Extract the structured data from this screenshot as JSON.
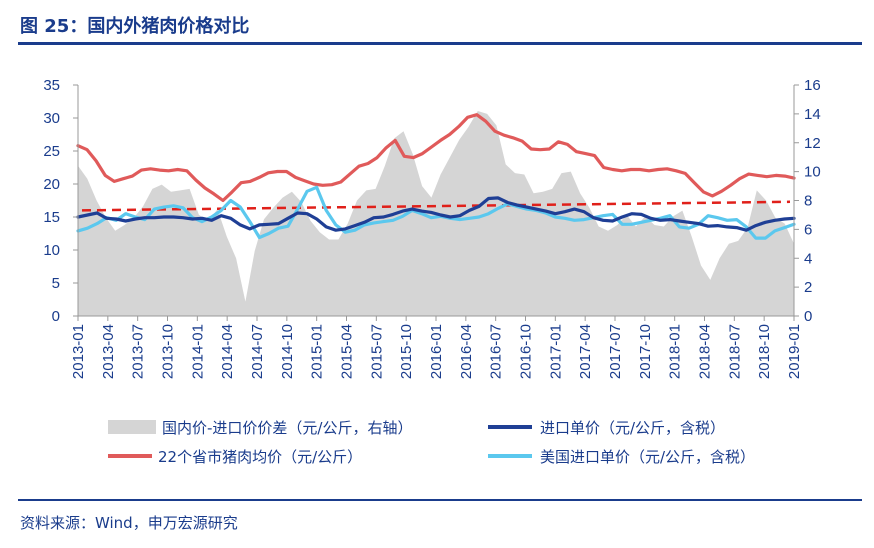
{
  "figure": {
    "title": "图 25：国内外猪肉价格对比",
    "source": "资料来源：Wind，申万宏源研究"
  },
  "colors": {
    "text": "#1a3c8c",
    "area": "#d5d5d5",
    "import_price": "#1f3f95",
    "domestic_price": "#e05a5a",
    "us_import_price": "#5bc8ee",
    "trend": "#e0201a"
  },
  "chart_data": {
    "type": "line",
    "title": "图 25：国内外猪肉价格对比",
    "x_tick_labels": [
      "2013-01",
      "2013-04",
      "2013-07",
      "2013-10",
      "2014-01",
      "2014-04",
      "2014-07",
      "2014-10",
      "2015-01",
      "2015-04",
      "2015-07",
      "2015-10",
      "2016-01",
      "2016-04",
      "2016-07",
      "2016-10",
      "2017-01",
      "2017-04",
      "2017-07",
      "2017-10",
      "2018-01",
      "2018-04",
      "2018-07",
      "2018-10",
      "2019-01"
    ],
    "left_axis": {
      "min": 0,
      "max": 35,
      "ticks": [
        "35",
        "30",
        "25",
        "20",
        "15",
        "10",
        "5",
        "0"
      ]
    },
    "right_axis": {
      "min": 0,
      "max": 16,
      "ticks": [
        "16",
        "14",
        "12",
        "10",
        "8",
        "6",
        "4",
        "2",
        "0"
      ]
    },
    "series": [
      {
        "name": "国内价-进口价价差（元/公斤，右轴）",
        "type": "area",
        "axis": "right",
        "values": [
          10.4,
          9.5,
          8.0,
          6.8,
          5.9,
          6.3,
          6.8,
          7.6,
          8.8,
          9.1,
          8.6,
          8.7,
          8.8,
          7.0,
          6.6,
          7.4,
          5.5,
          4.0,
          1.0,
          4.5,
          6.7,
          7.5,
          8.2,
          8.6,
          7.9,
          6.6,
          5.8,
          5.3,
          5.3,
          6.4,
          8.0,
          8.7,
          8.8,
          10.4,
          12.3,
          12.8,
          11.2,
          9.0,
          8.2,
          9.8,
          11.0,
          12.2,
          13.1,
          14.2,
          14.0,
          13.2,
          10.5,
          9.9,
          9.8,
          8.5,
          8.6,
          8.8,
          9.9,
          10.0,
          8.5,
          7.5,
          6.2,
          5.9,
          6.3,
          7.0,
          6.2,
          6.9,
          6.3,
          6.2,
          6.9,
          7.3,
          5.5,
          3.5,
          2.5,
          4.0,
          5.0,
          5.2,
          6.1,
          8.7,
          8.0,
          6.8,
          6.4,
          5.0
        ]
      },
      {
        "name": "进口单价（元/公斤，含税）",
        "type": "line",
        "axis": "left",
        "values": [
          15.0,
          15.3,
          15.6,
          14.8,
          14.7,
          14.4,
          14.7,
          14.9,
          14.9,
          15.0,
          15.0,
          14.9,
          14.7,
          14.8,
          14.5,
          15.2,
          14.8,
          13.8,
          13.2,
          13.8,
          13.9,
          14.0,
          14.8,
          15.6,
          15.5,
          14.7,
          13.5,
          13.0,
          13.2,
          13.7,
          14.2,
          14.9,
          15.0,
          15.4,
          15.9,
          16.2,
          15.9,
          15.7,
          15.3,
          15.0,
          15.2,
          16.0,
          16.6,
          17.8,
          17.9,
          17.2,
          16.8,
          16.5,
          16.2,
          15.9,
          15.5,
          15.8,
          16.2,
          15.8,
          14.9,
          14.5,
          14.4,
          15.0,
          15.5,
          15.4,
          14.8,
          14.5,
          14.6,
          14.4,
          14.2,
          14.0,
          13.6,
          13.7,
          13.5,
          13.4,
          13.0,
          13.7,
          14.2,
          14.5,
          14.7,
          14.8
        ]
      },
      {
        "name": "22个省市猪肉均价（元/公斤）",
        "type": "line",
        "axis": "left",
        "values": [
          25.8,
          25.2,
          23.5,
          21.3,
          20.4,
          20.8,
          21.2,
          22.1,
          22.3,
          22.1,
          22.0,
          22.2,
          22.0,
          20.6,
          19.4,
          18.5,
          17.5,
          18.8,
          20.2,
          20.4,
          21.0,
          21.7,
          21.9,
          21.9,
          21.0,
          20.5,
          20.0,
          19.8,
          19.9,
          20.3,
          21.5,
          22.7,
          23.1,
          24.0,
          25.5,
          26.6,
          24.2,
          24.0,
          24.6,
          25.6,
          26.6,
          27.5,
          28.7,
          30.1,
          30.5,
          29.5,
          28.0,
          27.4,
          27.0,
          26.5,
          25.3,
          25.2,
          25.3,
          26.4,
          26.0,
          24.9,
          24.6,
          24.3,
          22.5,
          22.2,
          22.0,
          22.2,
          22.2,
          22.0,
          22.2,
          22.3,
          22.0,
          21.6,
          20.2,
          18.8,
          18.2,
          18.9,
          19.8,
          20.8,
          21.5,
          21.3,
          21.1,
          21.3,
          21.2,
          20.9
        ]
      },
      {
        "name": "美国进口单价（元/公斤，含税）",
        "type": "line",
        "axis": "left",
        "values": [
          12.9,
          13.3,
          14.0,
          14.9,
          14.5,
          15.5,
          15.0,
          14.6,
          16.2,
          16.5,
          16.7,
          16.4,
          14.9,
          14.3,
          15.0,
          16.0,
          17.5,
          16.5,
          14.3,
          11.9,
          12.5,
          13.3,
          13.6,
          16.2,
          18.9,
          19.5,
          16.0,
          13.8,
          12.7,
          13.0,
          13.8,
          14.1,
          14.3,
          14.5,
          15.1,
          16.0,
          15.5,
          14.9,
          15.1,
          14.8,
          14.6,
          14.8,
          15.0,
          15.5,
          16.3,
          17.0,
          16.6,
          16.2,
          16.0,
          15.6,
          15.0,
          14.8,
          14.5,
          14.6,
          14.9,
          15.2,
          15.4,
          13.9,
          13.9,
          14.2,
          14.5,
          14.8,
          15.2,
          13.5,
          13.3,
          13.9,
          15.2,
          14.9,
          14.5,
          14.6,
          13.5,
          11.8,
          11.8,
          12.9,
          13.4,
          13.9
        ]
      },
      {
        "name": "trend",
        "type": "dashed-line",
        "axis": "left",
        "values": [
          16.0,
          17.3
        ]
      }
    ],
    "legend": [
      {
        "label": "国内价-进口价价差（元/公斤，右轴）",
        "marker": "area"
      },
      {
        "label": "进口单价（元/公斤，含税）",
        "marker": "line"
      },
      {
        "label": "22个省市猪肉均价（元/公斤）",
        "marker": "line"
      },
      {
        "label": "美国进口单价（元/公斤，含税）",
        "marker": "line"
      }
    ]
  }
}
